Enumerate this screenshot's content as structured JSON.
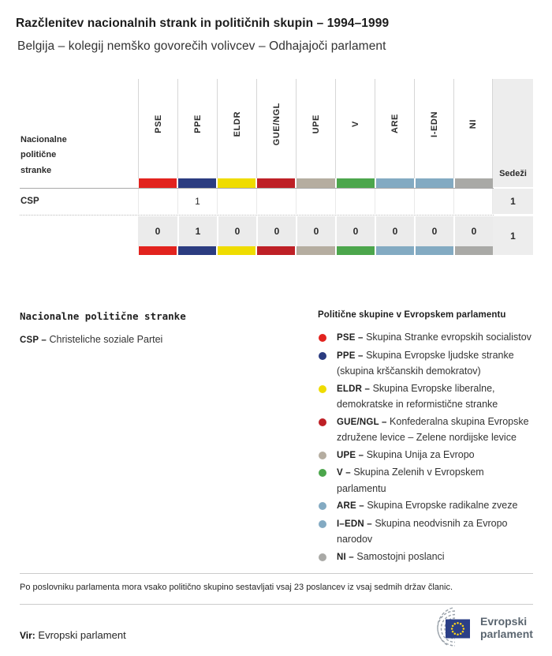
{
  "title": "Razčlenitev nacionalnih strank in političnih skupin – 1994–1999",
  "subtitle": "Belgija – kolegij nemško govorečih volivcev – Odhajajoči parlament",
  "table": {
    "row_header_label": "Nacionalne politične stranke",
    "seats_label": "Sedeži",
    "groups": [
      {
        "abbr": "PSE",
        "color": "#E2231E"
      },
      {
        "abbr": "PPE",
        "color": "#2B3C80"
      },
      {
        "abbr": "ELDR",
        "color": "#EFDC00"
      },
      {
        "abbr": "GUE/NGL",
        "color": "#BE2026"
      },
      {
        "abbr": "UPE",
        "color": "#B5ADA0"
      },
      {
        "abbr": "V",
        "color": "#4CA64C"
      },
      {
        "abbr": "ARE",
        "color": "#83AAC2"
      },
      {
        "abbr": "I-EDN",
        "color": "#83AAC2"
      },
      {
        "abbr": "NI",
        "color": "#A9A9A6"
      }
    ],
    "rows": [
      {
        "party": "CSP",
        "values": [
          "",
          "1",
          "",
          "",
          "",
          "",
          "",
          "",
          ""
        ],
        "seats": "1"
      }
    ],
    "totals": {
      "values": [
        "0",
        "1",
        "0",
        "0",
        "0",
        "0",
        "0",
        "0",
        "0"
      ],
      "seats": "1"
    }
  },
  "legend_parties": {
    "heading": "Nacionalne politične stranke",
    "items": [
      {
        "label": "CSP –",
        "name": "Christeliche soziale Partei"
      }
    ]
  },
  "legend_groups": {
    "heading": "Politične skupine v Evropskem parlamentu",
    "items": [
      {
        "label": "PSE –",
        "desc": "Skupina Stranke evropskih socialistov",
        "color": "#E2231E"
      },
      {
        "label": "PPE –",
        "desc": "Skupina Evropske ljudske stranke\n(skupina krščanskih demokratov)",
        "color": "#2B3C80"
      },
      {
        "label": "ELDR –",
        "desc": "Skupina Evropske liberalne,\ndemokratske in reformistične stranke",
        "color": "#EFDC00"
      },
      {
        "label": "GUE/NGL –",
        "desc": "Konfederalna skupina Evropske\nzdružene levice – Zelene nordijske levice",
        "color": "#BE2026"
      },
      {
        "label": "UPE –",
        "desc": "Skupina Unija za Evropo",
        "color": "#B5ADA0"
      },
      {
        "label": "V –",
        "desc": "Skupina Zelenih v Evropskem parlamentu",
        "color": "#4CA64C"
      },
      {
        "label": "ARE –",
        "desc": "Skupina Evropske radikalne zveze",
        "color": "#83AAC2"
      },
      {
        "label": "I–EDN –",
        "desc": "Skupina neodvisnih za Evropo\nnarodov",
        "color": "#83AAC2"
      },
      {
        "label": "NI –",
        "desc": "Samostojni poslanci",
        "color": "#A9A9A6"
      }
    ]
  },
  "footnote": "Po poslovniku parlamenta mora vsako politično skupino sestavljati vsaj 23 poslancev iz vsaj sedmih držav članic.",
  "source": {
    "label": "Vir:",
    "value": "Evropski parlament"
  },
  "logo": {
    "line1": "Evropski",
    "line2": "parlament"
  }
}
